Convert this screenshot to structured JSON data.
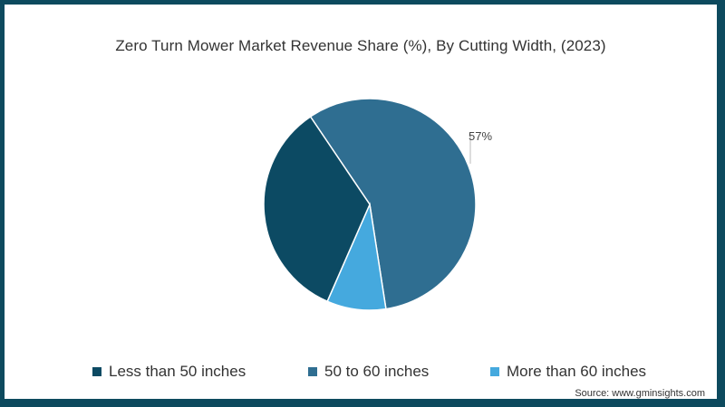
{
  "chart_data": {
    "type": "pie",
    "title": "Zero Turn Mower Market Revenue Share (%), By Cutting Width, (2023)",
    "categories": [
      "Less than 50 inches",
      "50 to 60 inches",
      "More than 60 inches"
    ],
    "values": [
      34,
      57,
      9
    ],
    "colors": [
      "#0c4a63",
      "#2f6e91",
      "#45a9de"
    ],
    "data_labels": [
      {
        "category": "50 to 60 inches",
        "text": "57%"
      }
    ],
    "legend_position": "bottom",
    "source": "Source: www.gminsights.com"
  },
  "title": "Zero Turn Mower Market Revenue Share (%), By Cutting Width, (2023)",
  "label_57": "57%",
  "legend": [
    {
      "label": "Less than 50 inches",
      "color": "#0c4a63"
    },
    {
      "label": "50 to 60 inches",
      "color": "#2f6e91"
    },
    {
      "label": "More than 60 inches",
      "color": "#45a9de"
    }
  ],
  "source": "Source: www.gminsights.com",
  "colors": {
    "border": "#0d4a5e",
    "background": "#ffffff"
  }
}
